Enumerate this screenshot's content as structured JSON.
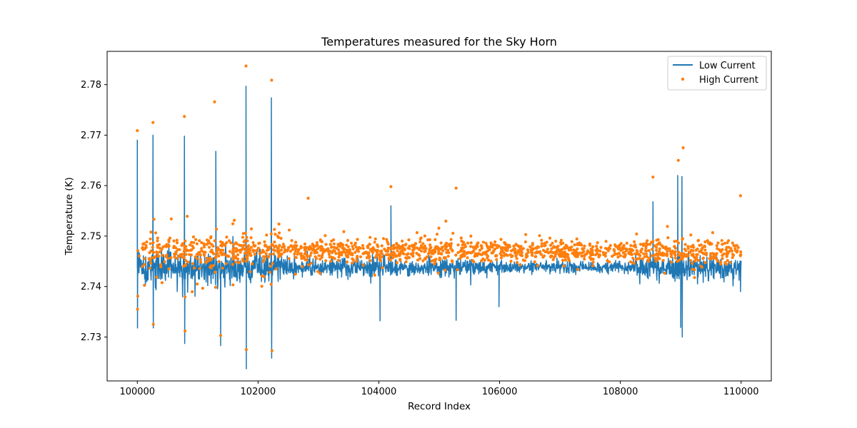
{
  "chart_data": {
    "type": "line+scatter",
    "title": "Temperatures measured for the Sky Horn",
    "xlabel": "Record Index",
    "ylabel": "Temperature (K)",
    "xlim": [
      99500,
      110500
    ],
    "ylim": [
      2.7213,
      2.7866
    ],
    "xticks": [
      100000,
      102000,
      104000,
      106000,
      108000,
      110000
    ],
    "xtick_labels": [
      "100000",
      "102000",
      "104000",
      "106000",
      "108000",
      "110000"
    ],
    "yticks": [
      2.73,
      2.74,
      2.75,
      2.76,
      2.77,
      2.78
    ],
    "ytick_labels": [
      "2.73",
      "2.74",
      "2.75",
      "2.76",
      "2.77",
      "2.78"
    ],
    "grid": false,
    "legend_position": "top-right",
    "series": [
      {
        "name": "Low Current",
        "kind": "line",
        "color": "#1f77b4",
        "baseline": 2.7438,
        "x_range": [
          100000,
          110000
        ],
        "notable_points": [
          {
            "x": 100000,
            "y": 2.769
          },
          {
            "x": 100003,
            "y": 2.7318
          },
          {
            "x": 100260,
            "y": 2.77
          },
          {
            "x": 100265,
            "y": 2.7318
          },
          {
            "x": 100780,
            "y": 2.7698
          },
          {
            "x": 100785,
            "y": 2.7287
          },
          {
            "x": 101300,
            "y": 2.7668
          },
          {
            "x": 101380,
            "y": 2.7283
          },
          {
            "x": 101800,
            "y": 2.7797
          },
          {
            "x": 101805,
            "y": 2.7237
          },
          {
            "x": 102220,
            "y": 2.7774
          },
          {
            "x": 102225,
            "y": 2.7258
          },
          {
            "x": 104020,
            "y": 2.7332
          },
          {
            "x": 104200,
            "y": 2.756
          },
          {
            "x": 105280,
            "y": 2.7333
          },
          {
            "x": 105990,
            "y": 2.736
          },
          {
            "x": 108540,
            "y": 2.7568
          },
          {
            "x": 108950,
            "y": 2.762
          },
          {
            "x": 109000,
            "y": 2.7319
          },
          {
            "x": 109020,
            "y": 2.7618
          },
          {
            "x": 109025,
            "y": 2.73
          },
          {
            "x": 109990,
            "y": 2.739
          }
        ]
      },
      {
        "name": "High Current",
        "kind": "scatter",
        "color": "#ff7f0e",
        "baseline": 2.747,
        "x_range": [
          100000,
          110000
        ],
        "notable_points": [
          {
            "x": 100000,
            "y": 2.7709
          },
          {
            "x": 100003,
            "y": 2.7355
          },
          {
            "x": 100260,
            "y": 2.7725
          },
          {
            "x": 100265,
            "y": 2.7325
          },
          {
            "x": 100780,
            "y": 2.7737
          },
          {
            "x": 100790,
            "y": 2.7312
          },
          {
            "x": 101280,
            "y": 2.7766
          },
          {
            "x": 101380,
            "y": 2.7303
          },
          {
            "x": 101800,
            "y": 2.7837
          },
          {
            "x": 101805,
            "y": 2.7275
          },
          {
            "x": 102225,
            "y": 2.7809
          },
          {
            "x": 102230,
            "y": 2.7273
          },
          {
            "x": 102830,
            "y": 2.7575
          },
          {
            "x": 104200,
            "y": 2.7598
          },
          {
            "x": 105280,
            "y": 2.7595
          },
          {
            "x": 108540,
            "y": 2.7617
          },
          {
            "x": 108960,
            "y": 2.765
          },
          {
            "x": 109040,
            "y": 2.7675
          },
          {
            "x": 109990,
            "y": 2.758
          }
        ]
      }
    ]
  }
}
